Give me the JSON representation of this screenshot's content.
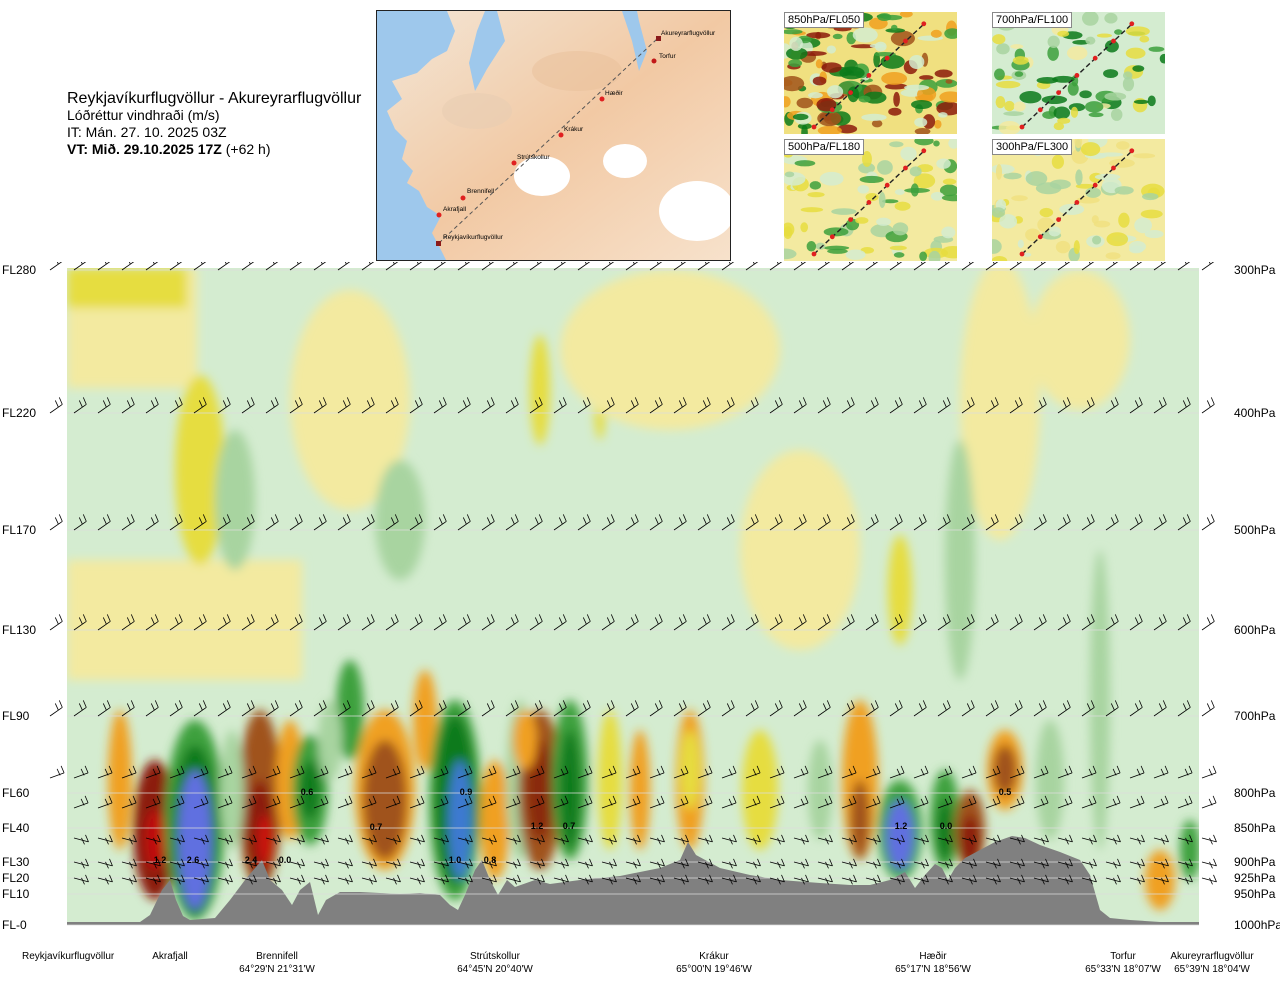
{
  "header": {
    "route_title": "Reykjavíkurflugvöllur - Akureyrarflugvöllur",
    "subtitle": "Lóðréttur vindhraði (m/s)",
    "run_prefix": "IT: Mán. 27. 10. 2025 03Z",
    "valid_bold": "VT: Mið. 29.10.2025 17Z",
    "valid_lead": " (+62 h)"
  },
  "overview_map": {
    "labels": [
      "Akureyrarflugvöllur",
      "Torfur",
      "Hæðir",
      "Krákur",
      "Strútskollur",
      "Brennifell",
      "Akrafjall",
      "Reykjavíkurflugvöllur"
    ]
  },
  "panels": [
    {
      "label": "850hPa/FL050"
    },
    {
      "label": "700hPa/FL100"
    },
    {
      "label": "500hPa/FL180"
    },
    {
      "label": "300hPa/FL300"
    }
  ],
  "colors": {
    "strong_down": "#8c1a0a",
    "down_brown": "#a0521a",
    "down_orange": "#f0a020",
    "down_yellow": "#e6dd40",
    "weak_down": "#f3eaa0",
    "neutral": "#fbfbe5",
    "weak_up": "#d4ecd0",
    "up_light": "#a8d4a0",
    "up_green": "#3ca03c",
    "up_dark": "#0b7a1a",
    "strong_up": "#6070e0",
    "terrain": "#808080"
  },
  "chart_data": {
    "type": "heatmap",
    "title": "Lóðréttur vindhraði (m/s)",
    "left_axis_ticks": [
      "FL280",
      "FL220",
      "FL170",
      "FL130",
      "FL90",
      "FL60",
      "FL40",
      "FL30",
      "FL20",
      "FL10",
      "FL-0"
    ],
    "right_axis_ticks": [
      "300hPa",
      "400hPa",
      "500hPa",
      "600hPa",
      "700hPa",
      "800hPa",
      "850hPa",
      "900hPa",
      "925hPa",
      "950hPa",
      "1000hPa"
    ],
    "waypoints": [
      {
        "name": "Reykjavíkurflugvöllur",
        "coord": ""
      },
      {
        "name": "Akrafjall",
        "coord": ""
      },
      {
        "name": "Brennifell",
        "coord": "64°29'N 21°31'W"
      },
      {
        "name": "Strútskollur",
        "coord": "64°45'N 20°40'W"
      },
      {
        "name": "Krákur",
        "coord": "65°00'N 19°46'W"
      },
      {
        "name": "Hæðir",
        "coord": "65°17'N 18°56'W"
      },
      {
        "name": "Torfur",
        "coord": "65°33'N 18°07'W"
      },
      {
        "name": "Akureyrarflugvöllur",
        "coord": "65°39'N 18°04'W"
      }
    ],
    "value_labels": [
      "1.2",
      "2.6",
      "2.4",
      "0.0",
      "0.6",
      "0.7",
      "0.9",
      "1.0",
      "0.8",
      "1.2",
      "0.7",
      "1.2",
      "0.0",
      "0.5"
    ]
  }
}
